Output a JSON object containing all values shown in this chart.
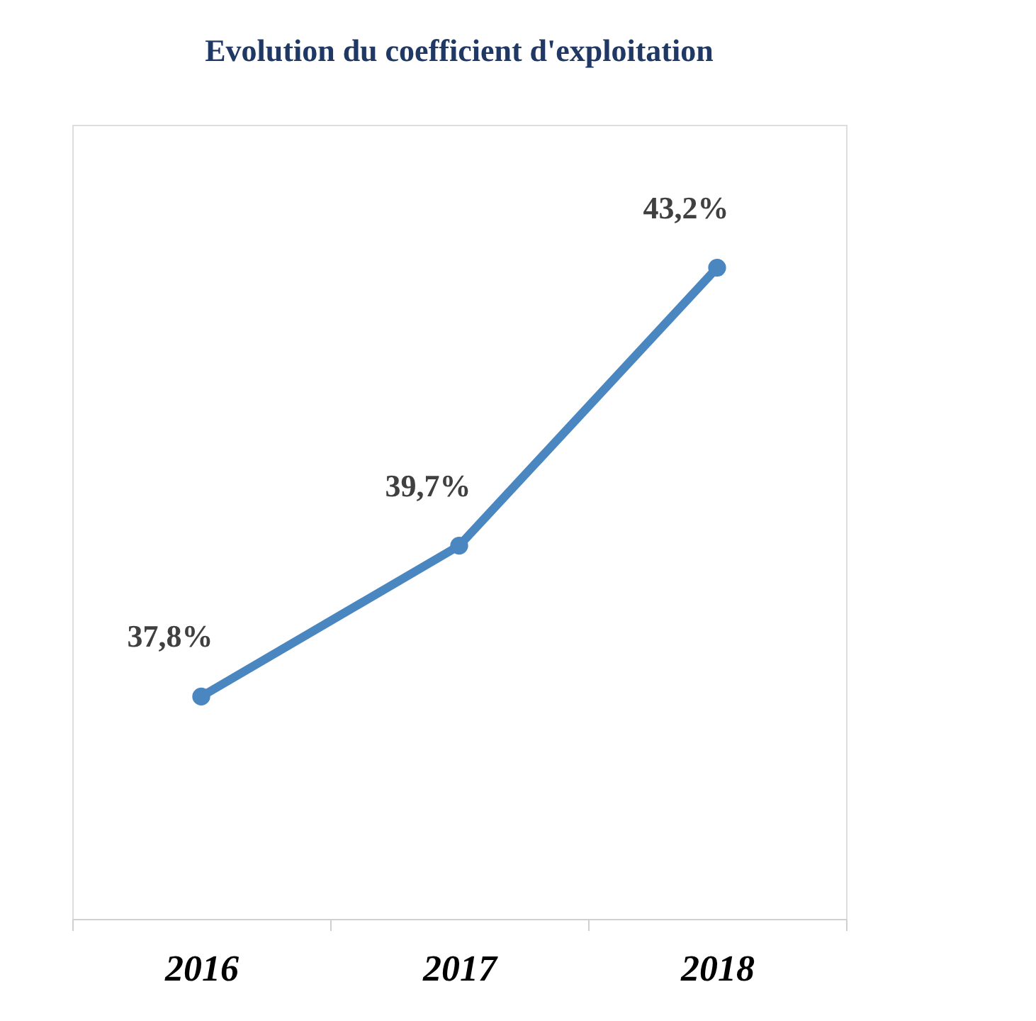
{
  "chart_data": {
    "type": "line",
    "title": "Evolution du coefficient d'exploitation",
    "categories": [
      "2016",
      "2017",
      "2018"
    ],
    "series": [
      {
        "color": "#4a86c0",
        "values": [
          37.8,
          39.7,
          43.2
        ],
        "value_labels": [
          "37,8%",
          "39,7%",
          "43,2%"
        ]
      }
    ],
    "ylim": [
      35,
      45
    ],
    "tick_labels": "x",
    "grid": false,
    "marker": "circle",
    "line_style": "solid"
  }
}
